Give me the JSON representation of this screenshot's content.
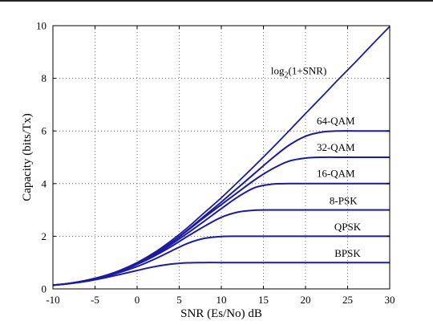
{
  "chart_data": {
    "type": "line",
    "xlabel": "SNR (Es/No) dB",
    "ylabel": "Capacity (bits/Tx)",
    "xlim": [
      -10,
      30
    ],
    "ylim": [
      0,
      10
    ],
    "xticks": [
      -10,
      -5,
      0,
      5,
      10,
      15,
      20,
      25,
      30
    ],
    "yticks": [
      0,
      2,
      4,
      6,
      8,
      10
    ],
    "grid": true,
    "line_color": "#1a1aa6",
    "series": [
      {
        "name": "log2(1+SNR)",
        "label_base": "log",
        "label_sub": "2",
        "label_rest": "(1+SNR)",
        "x": [
          -10,
          -8,
          -6,
          -4,
          -2,
          0,
          2,
          4,
          6,
          8,
          10,
          12,
          14,
          16,
          18,
          20,
          22,
          24,
          26,
          28,
          30
        ],
        "y": [
          0.14,
          0.21,
          0.33,
          0.49,
          0.71,
          1.0,
          1.37,
          1.82,
          2.33,
          2.9,
          3.46,
          4.07,
          4.69,
          5.33,
          5.99,
          6.66,
          7.32,
          7.99,
          8.64,
          9.31,
          9.97
        ]
      },
      {
        "name": "64-QAM",
        "x": [
          -10,
          -8,
          -6,
          -4,
          -2,
          0,
          2,
          4,
          6,
          8,
          10,
          12,
          14,
          16,
          18,
          20,
          22,
          24,
          26,
          30
        ],
        "y": [
          0.14,
          0.21,
          0.32,
          0.48,
          0.69,
          0.97,
          1.33,
          1.75,
          2.24,
          2.77,
          3.3,
          3.85,
          4.4,
          4.95,
          5.45,
          5.8,
          5.96,
          6.0,
          6.0,
          6.0
        ]
      },
      {
        "name": "32-QAM",
        "x": [
          -10,
          -8,
          -6,
          -4,
          -2,
          0,
          2,
          4,
          6,
          8,
          10,
          12,
          14,
          16,
          18,
          20,
          22,
          25,
          30
        ],
        "y": [
          0.14,
          0.21,
          0.32,
          0.48,
          0.69,
          0.97,
          1.32,
          1.74,
          2.22,
          2.72,
          3.2,
          3.68,
          4.15,
          4.55,
          4.85,
          4.97,
          5.0,
          5.0,
          5.0
        ]
      },
      {
        "name": "16-QAM",
        "x": [
          -10,
          -8,
          -6,
          -4,
          -2,
          0,
          2,
          4,
          6,
          8,
          10,
          12,
          14,
          16,
          18,
          20,
          25,
          30
        ],
        "y": [
          0.14,
          0.21,
          0.32,
          0.47,
          0.68,
          0.95,
          1.28,
          1.68,
          2.12,
          2.58,
          3.05,
          3.5,
          3.85,
          3.98,
          4.0,
          4.0,
          4.0,
          4.0
        ]
      },
      {
        "name": "8-PSK",
        "x": [
          -10,
          -8,
          -6,
          -4,
          -2,
          0,
          2,
          4,
          6,
          8,
          10,
          12,
          14,
          16,
          20,
          25,
          30
        ],
        "y": [
          0.14,
          0.21,
          0.32,
          0.47,
          0.67,
          0.93,
          1.24,
          1.6,
          2.0,
          2.38,
          2.72,
          2.92,
          2.99,
          3.0,
          3.0,
          3.0,
          3.0
        ]
      },
      {
        "name": "QPSK",
        "x": [
          -10,
          -8,
          -6,
          -4,
          -2,
          0,
          2,
          4,
          6,
          8,
          10,
          12,
          15,
          20,
          25,
          30
        ],
        "y": [
          0.14,
          0.21,
          0.31,
          0.45,
          0.63,
          0.85,
          1.12,
          1.43,
          1.73,
          1.92,
          1.99,
          2.0,
          2.0,
          2.0,
          2.0,
          2.0
        ]
      },
      {
        "name": "BPSK",
        "x": [
          -10,
          -8,
          -6,
          -4,
          -2,
          0,
          2,
          4,
          6,
          8,
          10,
          15,
          20,
          25,
          30
        ],
        "y": [
          0.14,
          0.2,
          0.29,
          0.41,
          0.55,
          0.7,
          0.84,
          0.94,
          0.99,
          1.0,
          1.0,
          1.0,
          1.0,
          1.0,
          1.0
        ]
      }
    ],
    "labels": [
      {
        "series": "log2(1+SNR)",
        "x": 19.2,
        "y": 8.15
      },
      {
        "series": "64-QAM",
        "x": 23.6,
        "y": 6.25
      },
      {
        "series": "32-QAM",
        "x": 23.6,
        "y": 5.25
      },
      {
        "series": "16-QAM",
        "x": 23.6,
        "y": 4.25
      },
      {
        "series": "8-PSK",
        "x": 24.5,
        "y": 3.22
      },
      {
        "series": "QPSK",
        "x": 25.0,
        "y": 2.22
      },
      {
        "series": "BPSK",
        "x": 25.0,
        "y": 1.22
      }
    ]
  }
}
